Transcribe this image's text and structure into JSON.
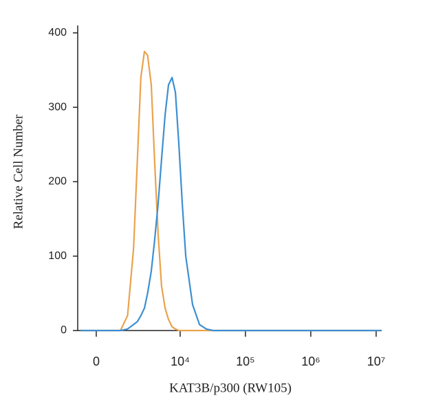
{
  "chart_data": {
    "type": "line",
    "xlabel": "KAT3B/p300 (RW105)",
    "ylabel": "Relative Cell Number",
    "xscale": "asinh",
    "x": [
      -600,
      500,
      1000,
      1400,
      1800,
      2100,
      2400,
      2750,
      3100,
      3550,
      4000,
      4550,
      5150,
      5850,
      6600,
      7500,
      8450,
      9550,
      10800,
      12200,
      15500,
      19800,
      25200,
      32000,
      12000000
    ],
    "series": [
      {
        "color": "#e9a24c",
        "values": [
          0,
          0,
          0,
          20,
          110,
          230,
          340,
          375,
          370,
          330,
          230,
          130,
          60,
          30,
          15,
          5,
          2,
          0,
          0,
          0,
          0,
          0,
          0,
          0,
          0
        ]
      },
      {
        "color": "#3b8fd2",
        "values": [
          0,
          0,
          0,
          2,
          8,
          12,
          20,
          30,
          50,
          80,
          120,
          170,
          230,
          290,
          330,
          340,
          320,
          250,
          170,
          100,
          35,
          8,
          2,
          0,
          0
        ]
      }
    ],
    "xlim": [
      -670,
      12150000
    ],
    "xticks": [
      0,
      {
        "value": 10000,
        "label": "10⁴"
      },
      {
        "value": 100000,
        "label": "10⁵"
      },
      {
        "value": 1000000,
        "label": "10⁶"
      },
      {
        "value": 10000000,
        "label": "10⁷"
      }
    ],
    "ylim": [
      0,
      410
    ],
    "yticks": [
      0,
      100,
      200,
      300,
      400
    ]
  }
}
